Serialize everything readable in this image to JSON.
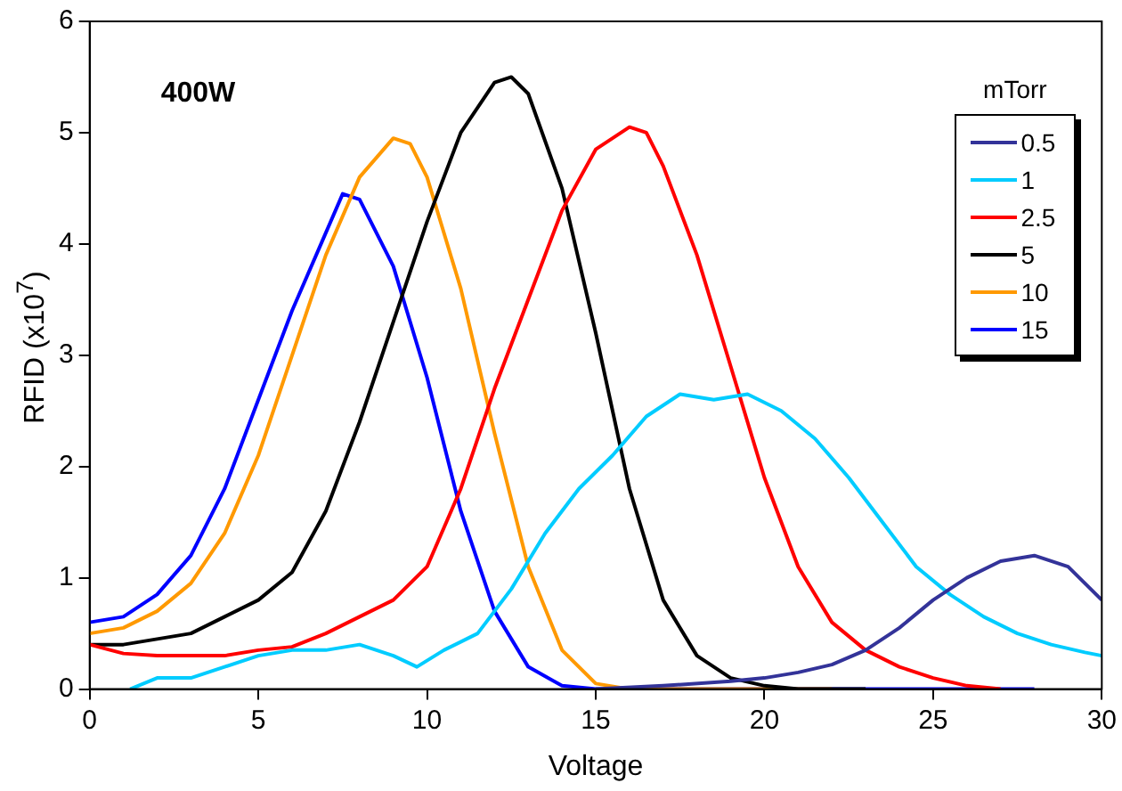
{
  "chart_data": {
    "type": "line",
    "xlabel": "Voltage",
    "ylabel": "RFID (x10$^{7}$)",
    "legend_title": "mTorr",
    "legend": "top right",
    "grid": false,
    "marker": "none",
    "line_style": "solid",
    "annotations": [
      "400W"
    ],
    "xlim": [
      0,
      30
    ],
    "xticks": [
      0,
      5,
      10,
      15,
      20,
      25,
      30
    ],
    "ylim": [
      0,
      6
    ],
    "yticks": [
      0,
      1,
      2,
      3,
      4,
      5,
      6
    ],
    "series": [
      {
        "name": "0.5",
        "color": "#333399",
        "x": [
          15,
          17,
          19,
          20,
          21,
          22,
          23,
          24,
          25,
          26,
          27,
          28,
          29,
          30
        ],
        "values": [
          0,
          0.03,
          0.07,
          0.1,
          0.15,
          0.22,
          0.35,
          0.55,
          0.8,
          1.0,
          1.15,
          1.2,
          1.1,
          0.8
        ]
      },
      {
        "name": "1",
        "color": "#00ccff",
        "x": [
          1.2,
          2,
          3,
          4,
          5,
          6,
          7,
          8,
          9,
          9.7,
          10.5,
          11.5,
          12.5,
          13.5,
          14.5,
          15.5,
          16.5,
          17.5,
          18.5,
          19.5,
          20.5,
          21.5,
          22.5,
          23.5,
          24.5,
          25.5,
          26.5,
          27.5,
          28.5,
          29.5,
          30
        ],
        "values": [
          0,
          0.1,
          0.1,
          0.2,
          0.3,
          0.35,
          0.35,
          0.4,
          0.3,
          0.2,
          0.35,
          0.5,
          0.9,
          1.4,
          1.8,
          2.1,
          2.45,
          2.65,
          2.6,
          2.65,
          2.5,
          2.25,
          1.9,
          1.5,
          1.1,
          0.85,
          0.65,
          0.5,
          0.4,
          0.33,
          0.3
        ]
      },
      {
        "name": "2.5",
        "color": "#ff0000",
        "x": [
          0,
          1,
          2,
          3,
          4,
          5,
          6,
          7,
          8,
          9,
          10,
          11,
          12,
          13,
          14,
          15,
          16,
          16.5,
          17,
          18,
          19,
          20,
          21,
          22,
          23,
          24,
          25,
          26,
          27
        ],
        "values": [
          0.4,
          0.32,
          0.3,
          0.3,
          0.3,
          0.35,
          0.38,
          0.5,
          0.65,
          0.8,
          1.1,
          1.8,
          2.7,
          3.5,
          4.3,
          4.85,
          5.05,
          5.0,
          4.7,
          3.9,
          2.9,
          1.9,
          1.1,
          0.6,
          0.35,
          0.2,
          0.1,
          0.03,
          0
        ]
      },
      {
        "name": "5",
        "color": "#000000",
        "x": [
          0,
          1,
          2,
          3,
          4,
          5,
          6,
          7,
          8,
          9,
          10,
          11,
          12,
          12.5,
          13,
          14,
          15,
          16,
          17,
          18,
          19,
          20,
          21,
          23
        ],
        "values": [
          0.4,
          0.4,
          0.45,
          0.5,
          0.65,
          0.8,
          1.05,
          1.6,
          2.4,
          3.3,
          4.2,
          5.0,
          5.45,
          5.5,
          5.35,
          4.5,
          3.2,
          1.8,
          0.8,
          0.3,
          0.1,
          0.03,
          0,
          0
        ]
      },
      {
        "name": "10",
        "color": "#ff9900",
        "x": [
          0,
          1,
          2,
          3,
          4,
          5,
          6,
          7,
          8,
          9,
          9.5,
          10,
          11,
          12,
          13,
          14,
          15,
          16,
          22
        ],
        "values": [
          0.5,
          0.55,
          0.7,
          0.95,
          1.4,
          2.1,
          3.0,
          3.9,
          4.6,
          4.95,
          4.9,
          4.6,
          3.6,
          2.3,
          1.1,
          0.35,
          0.05,
          0,
          0
        ]
      },
      {
        "name": "15",
        "color": "#0000ff",
        "x": [
          0,
          1,
          2,
          3,
          4,
          5,
          6,
          7,
          7.5,
          8,
          9,
          10,
          11,
          12,
          13,
          14,
          15,
          28
        ],
        "values": [
          0.6,
          0.65,
          0.85,
          1.2,
          1.8,
          2.6,
          3.4,
          4.1,
          4.45,
          4.4,
          3.8,
          2.8,
          1.6,
          0.7,
          0.2,
          0.03,
          0,
          0
        ]
      }
    ]
  }
}
